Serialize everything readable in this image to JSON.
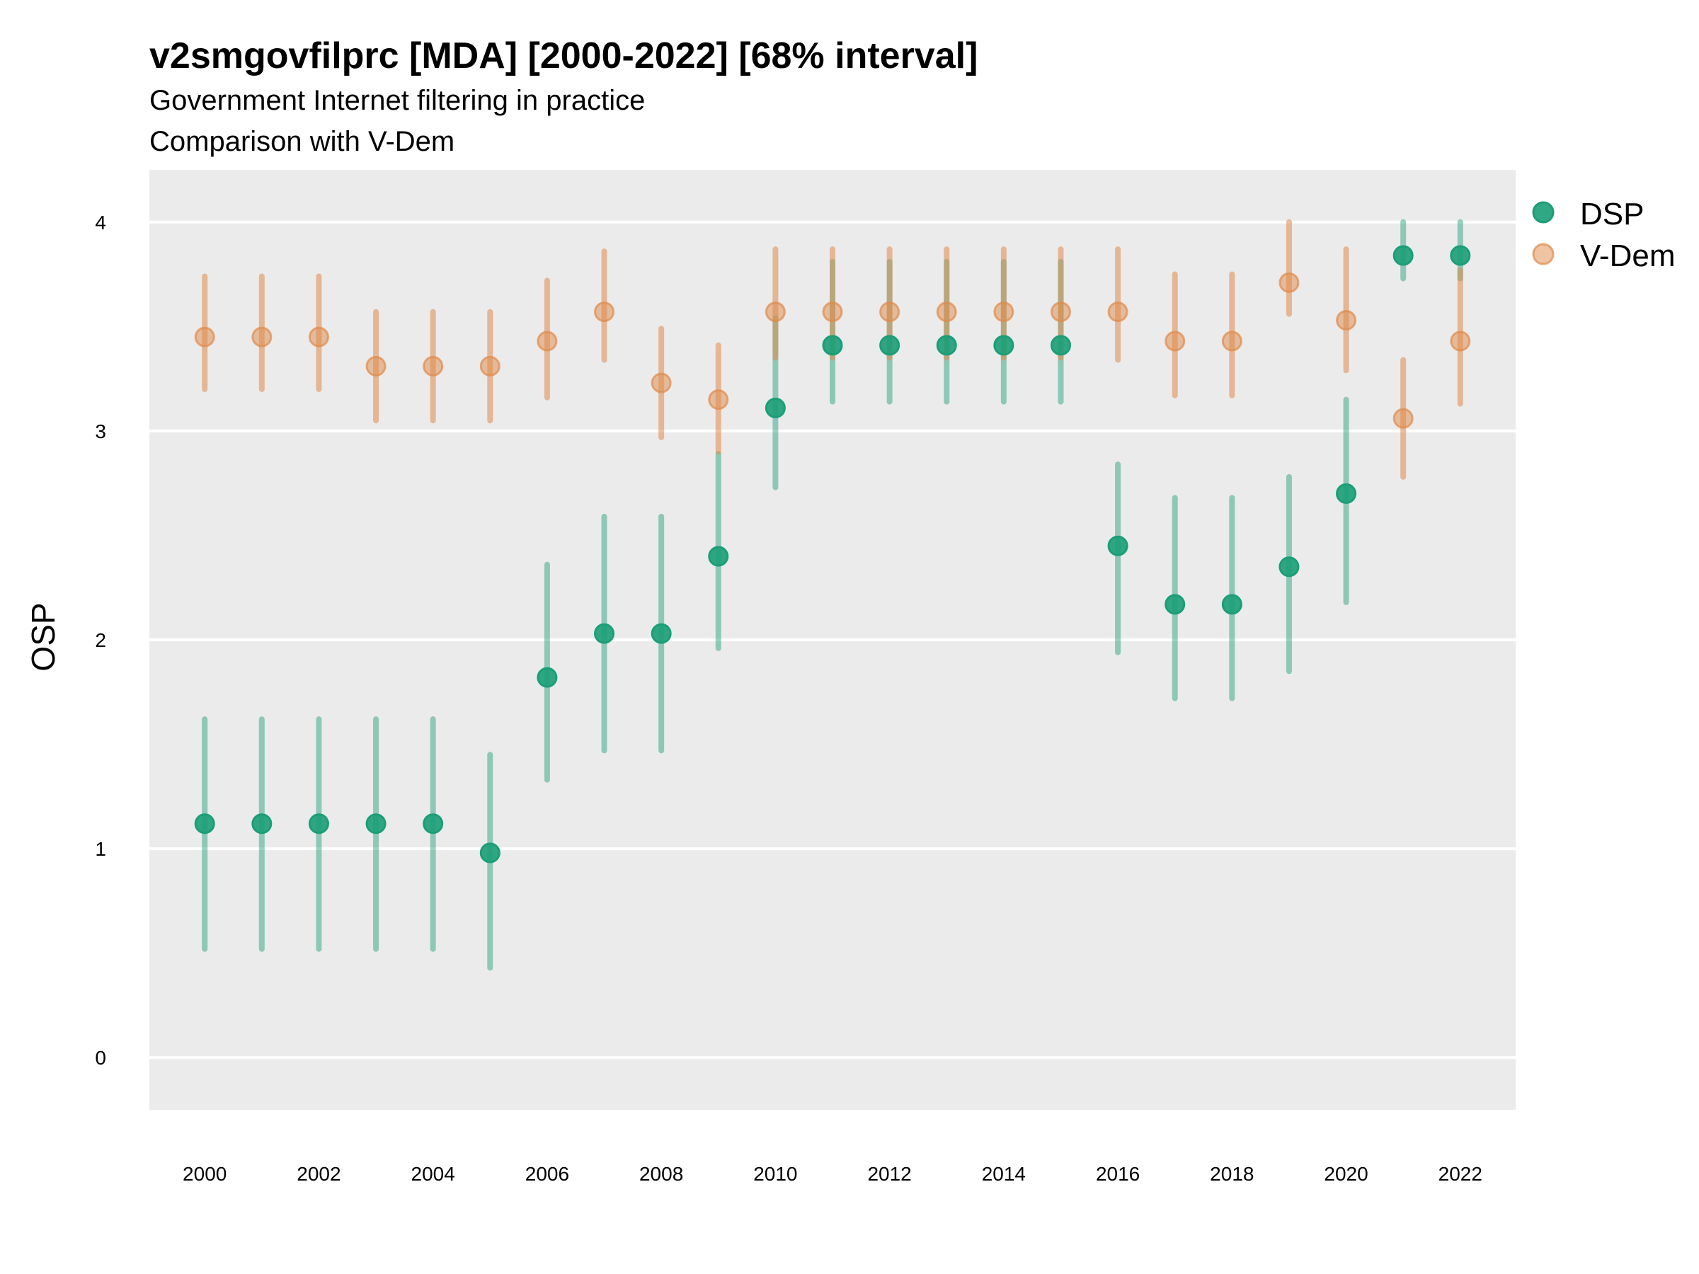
{
  "chart_data": {
    "type": "scatter",
    "title": "v2smgovfilprc [MDA] [2000-2022] [68% interval]",
    "subtitle": "Government Internet filtering in practice",
    "caption_line": "Comparison with V-Dem",
    "xlabel": "",
    "ylabel": "OSP",
    "xlim": [
      1999.03,
      2022.97
    ],
    "ylim": [
      -0.25,
      4.25
    ],
    "x_ticks": [
      2000,
      2002,
      2004,
      2006,
      2008,
      2010,
      2012,
      2014,
      2016,
      2018,
      2020,
      2022
    ],
    "y_ticks": [
      0,
      1,
      2,
      3,
      4
    ],
    "grid": true,
    "legend_position": "right",
    "interval": "68%",
    "x": [
      2000,
      2001,
      2002,
      2003,
      2004,
      2005,
      2006,
      2007,
      2008,
      2009,
      2010,
      2011,
      2012,
      2013,
      2014,
      2015,
      2016,
      2017,
      2018,
      2019,
      2020,
      2021,
      2022
    ],
    "series": [
      {
        "name": "DSP",
        "color": "#1b9e77",
        "values": [
          1.12,
          1.12,
          1.12,
          1.12,
          1.12,
          0.98,
          1.82,
          2.03,
          2.03,
          2.4,
          3.11,
          3.41,
          3.41,
          3.41,
          3.41,
          3.41,
          2.45,
          2.17,
          2.17,
          2.35,
          2.7,
          3.84,
          3.84
        ],
        "lower": [
          0.52,
          0.52,
          0.52,
          0.52,
          0.52,
          0.43,
          1.33,
          1.47,
          1.47,
          1.96,
          2.73,
          3.14,
          3.14,
          3.14,
          3.14,
          3.14,
          1.94,
          1.72,
          1.72,
          1.85,
          2.18,
          3.73,
          3.73
        ],
        "upper": [
          1.62,
          1.62,
          1.62,
          1.62,
          1.62,
          1.45,
          2.36,
          2.59,
          2.59,
          2.89,
          3.54,
          3.81,
          3.81,
          3.81,
          3.81,
          3.81,
          2.84,
          2.68,
          2.68,
          2.78,
          3.15,
          4.0,
          4.0
        ]
      },
      {
        "name": "V-Dem",
        "color": "#e08a4a",
        "values": [
          3.45,
          3.45,
          3.45,
          3.31,
          3.31,
          3.31,
          3.43,
          3.57,
          3.23,
          3.15,
          3.57,
          3.57,
          3.57,
          3.57,
          3.57,
          3.57,
          3.57,
          3.43,
          3.43,
          3.71,
          3.53,
          3.06,
          3.43
        ],
        "lower": [
          3.2,
          3.2,
          3.2,
          3.05,
          3.05,
          3.05,
          3.16,
          3.34,
          2.97,
          2.9,
          3.35,
          3.35,
          3.35,
          3.35,
          3.35,
          3.35,
          3.34,
          3.17,
          3.17,
          3.56,
          3.29,
          2.78,
          3.13
        ],
        "upper": [
          3.74,
          3.74,
          3.74,
          3.57,
          3.57,
          3.57,
          3.72,
          3.86,
          3.49,
          3.41,
          3.87,
          3.87,
          3.87,
          3.87,
          3.87,
          3.87,
          3.87,
          3.75,
          3.75,
          4.0,
          3.87,
          3.34,
          3.77
        ]
      }
    ]
  },
  "legend": {
    "items": [
      {
        "label": "DSP",
        "color": "#1b9e77"
      },
      {
        "label": "V-Dem",
        "color": "#e08a4a"
      }
    ]
  },
  "colors": {
    "panel_background": "#ebebeb",
    "grid": "#ffffff"
  }
}
